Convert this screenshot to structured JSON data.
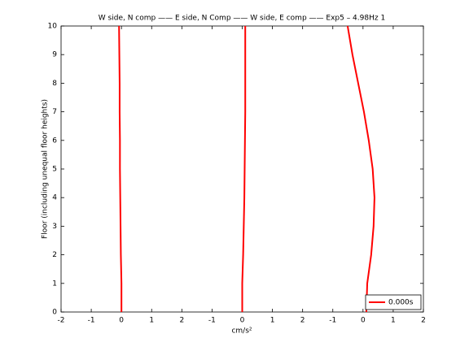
{
  "chart_data": {
    "type": "line",
    "title": "W side, N comp —— E side, N Comp —— W side, E comp —— Exp5 – 4.98Hz 1",
    "xlabel": "cm/s²",
    "ylabel": "Floor (including unequal floor heights)",
    "y": [
      0,
      1,
      2,
      3,
      4,
      5,
      6,
      7,
      8,
      9,
      10
    ],
    "series": [
      {
        "name": "0.000s",
        "color": "#ff0000",
        "values": [
          0,
          0,
          -0.02,
          -0.03,
          -0.04,
          -0.05,
          -0.05,
          -0.06,
          -0.06,
          -0.07,
          -0.08
        ]
      },
      {
        "color": "#ff0000",
        "values": [
          4,
          4,
          4.03,
          4.05,
          4.07,
          4.08,
          4.09,
          4.1,
          4.1,
          4.1,
          4.1
        ]
      },
      {
        "color": "#ff0000",
        "values": [
          8.11,
          8.14,
          8.27,
          8.35,
          8.38,
          8.32,
          8.19,
          8.03,
          7.84,
          7.65,
          7.49
        ]
      }
    ],
    "xlim": [
      -2,
      10
    ],
    "xticks": [
      -2,
      -1,
      0,
      1,
      2,
      {
        "value": 3,
        "label": "-1"
      },
      {
        "value": 4,
        "label": "0"
      },
      {
        "value": 5,
        "label": "1"
      },
      {
        "value": 6,
        "label": "2"
      },
      {
        "value": 7,
        "label": "-1"
      },
      {
        "value": 8,
        "label": "0"
      },
      {
        "value": 9,
        "label": "1"
      },
      {
        "value": 10,
        "label": "2"
      }
    ],
    "ylim": [
      0,
      10
    ],
    "yticks": [
      0,
      1,
      2,
      3,
      4,
      5,
      6,
      7,
      8,
      9,
      10
    ],
    "grid": false,
    "legend": "southeast"
  }
}
